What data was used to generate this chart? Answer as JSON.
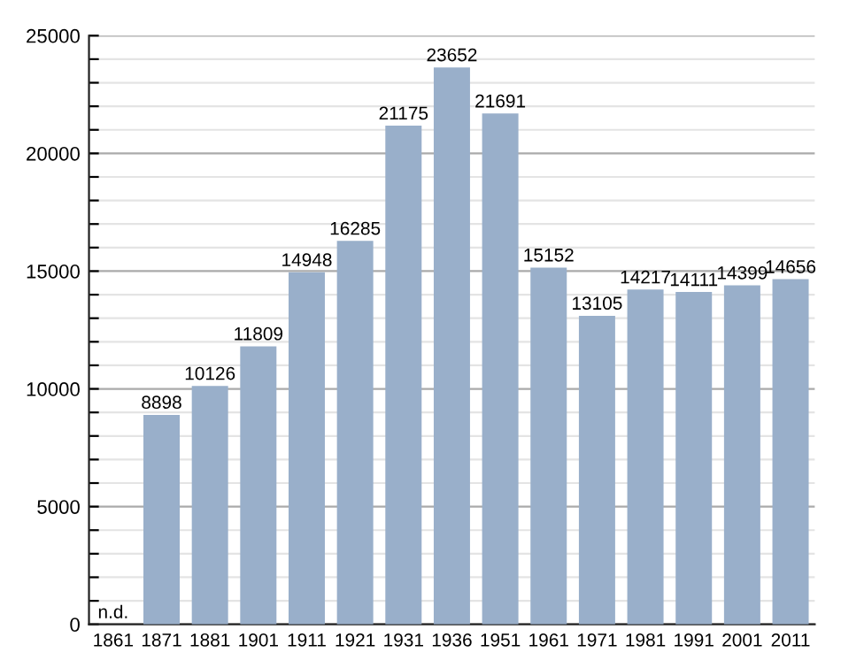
{
  "chart_data": {
    "type": "bar",
    "categories": [
      "1861",
      "1871",
      "1881",
      "1901",
      "1911",
      "1921",
      "1931",
      "1936",
      "1951",
      "1961",
      "1971",
      "1981",
      "1991",
      "2001",
      "2011"
    ],
    "values": [
      null,
      8898,
      10126,
      11809,
      14948,
      16285,
      21175,
      23652,
      21691,
      15152,
      13105,
      14217,
      14111,
      14399,
      14656
    ],
    "value_labels": [
      "n.d.",
      "8898",
      "10126",
      "11809",
      "14948",
      "16285",
      "21175",
      "23652",
      "21691",
      "15152",
      "13105",
      "14217",
      "14111",
      "14399",
      "14656"
    ],
    "color": "#99afca",
    "ylim": [
      0,
      25000
    ],
    "yticks": [
      0,
      {
        "value": 1000,
        "label": null
      },
      {
        "value": 2000,
        "label": null
      },
      {
        "value": 3000,
        "label": null
      },
      {
        "value": 4000,
        "label": null
      },
      5000,
      {
        "value": 6000,
        "label": null
      },
      {
        "value": 7000,
        "label": null
      },
      {
        "value": 8000,
        "label": null
      },
      {
        "value": 9000,
        "label": null
      },
      10000,
      {
        "value": 11000,
        "label": null
      },
      {
        "value": 12000,
        "label": null
      },
      {
        "value": 13000,
        "label": null
      },
      {
        "value": 14000,
        "label": null
      },
      15000,
      {
        "value": 16000,
        "label": null
      },
      {
        "value": 17000,
        "label": null
      },
      {
        "value": 18000,
        "label": null
      },
      {
        "value": 19000,
        "label": null
      },
      20000,
      {
        "value": 21000,
        "label": null
      },
      {
        "value": 22000,
        "label": null
      },
      {
        "value": 23000,
        "label": null
      },
      {
        "value": 24000,
        "label": null
      },
      25000
    ],
    "grid": "y"
  }
}
